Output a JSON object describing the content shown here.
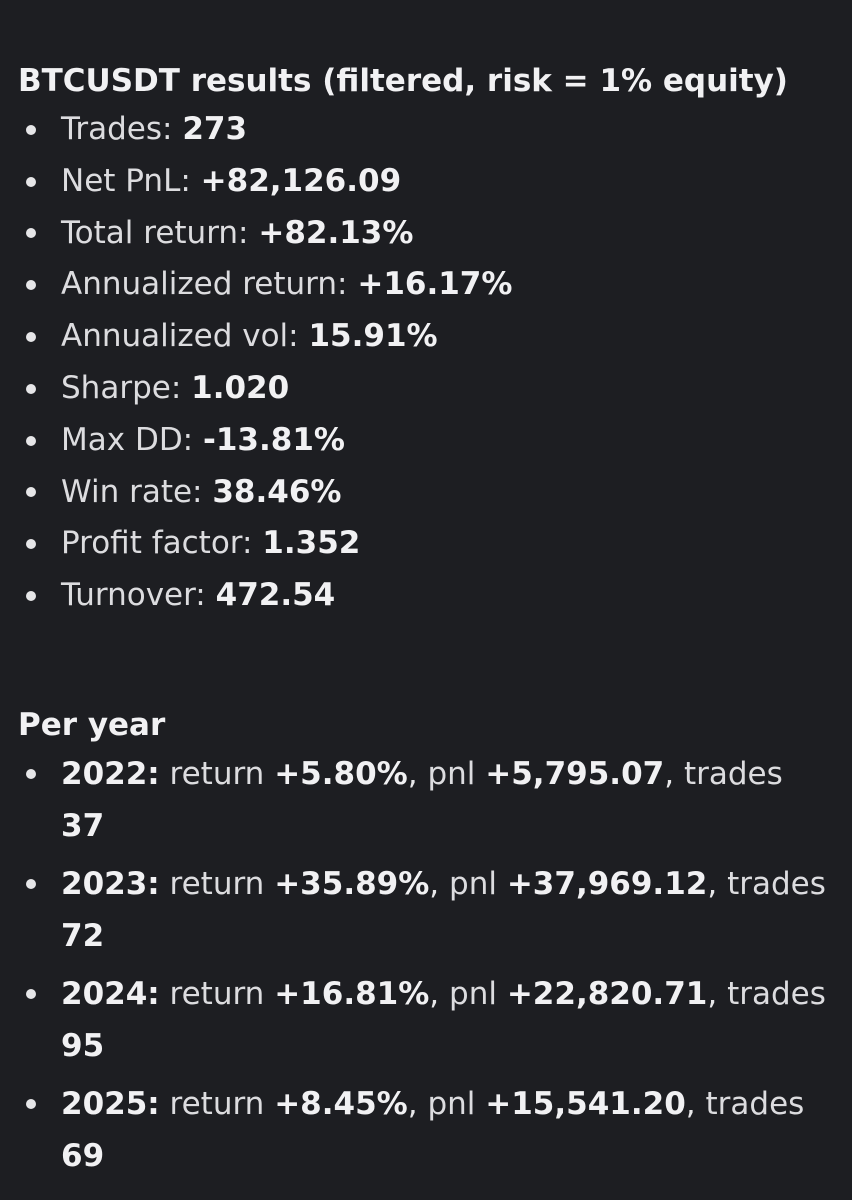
{
  "heading": "BTCUSDT results (filtered, risk = 1% equity)",
  "summary": [
    {
      "label": "Trades:",
      "value": "273"
    },
    {
      "label": "Net PnL:",
      "value": "+82,126.09"
    },
    {
      "label": "Total return:",
      "value": "+82.13%"
    },
    {
      "label": "Annualized return:",
      "value": "+16.17%"
    },
    {
      "label": "Annualized vol:",
      "value": "15.91%"
    },
    {
      "label": "Sharpe:",
      "value": "1.020"
    },
    {
      "label": "Max DD:",
      "value": "-13.81%"
    },
    {
      "label": "Win rate:",
      "value": "38.46%"
    },
    {
      "label": "Profit factor:",
      "value": "1.352"
    },
    {
      "label": "Turnover:",
      "value": "472.54"
    }
  ],
  "per_year": {
    "heading": "Per year",
    "labels": {
      "return": "return",
      "pnl": "pnl",
      "trades": "trades"
    },
    "rows": [
      {
        "year": "2022:",
        "return": "+5.80%",
        "pnl": "+5,795.07",
        "trades": "37"
      },
      {
        "year": "2023:",
        "return": "+35.89%",
        "pnl": "+37,969.12",
        "trades": "72"
      },
      {
        "year": "2024:",
        "return": "+16.81%",
        "pnl": "+22,820.71",
        "trades": "95"
      },
      {
        "year": "2025:",
        "return": "+8.45%",
        "pnl": "+15,541.20",
        "trades": "69"
      }
    ]
  }
}
